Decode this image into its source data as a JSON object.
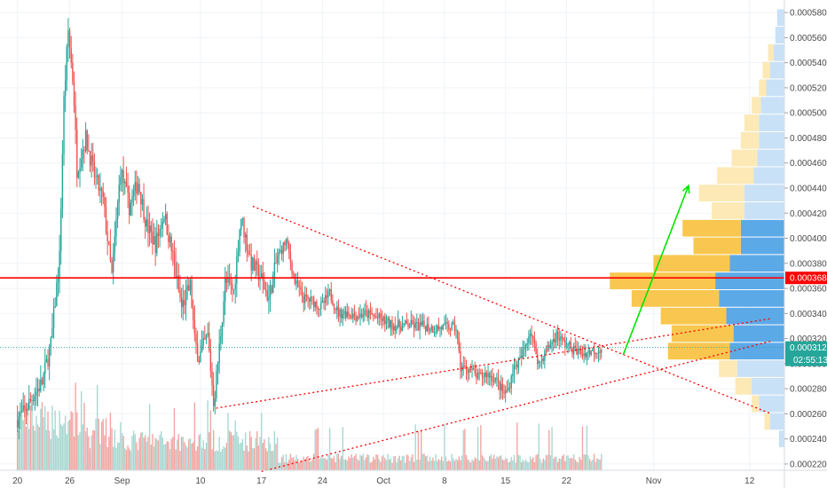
{
  "chart_data": {
    "type": "candlestick",
    "colors": {
      "up": "#26a69a",
      "down": "#ef5350",
      "volume_up": "#a8d8d2",
      "volume_down": "#f2a6a2",
      "resistance": "#ff0000",
      "trend": "#ff0000",
      "arrow": "#00e600",
      "vp_up": "#5ca9e8",
      "vp_down": "#f9c74f",
      "vp_up_light": "#c9e1f7",
      "vp_down_light": "#fde9b6",
      "last_price_tag": "#26a69a",
      "resistance_tag": "#ff0000",
      "grid": "#f0f3f7"
    },
    "y_axis": {
      "range": [
        0.000215,
        0.00059
      ],
      "ticks": [
        "0.0002200",
        "0.0002400",
        "0.0002600",
        "0.0002800",
        "0.0003000",
        "0.0003200",
        "0.0003400",
        "0.0003600",
        "0.0003800",
        "0.0004000",
        "0.0004200",
        "0.0004400",
        "0.0004600",
        "0.0004800",
        "0.0005000",
        "0.0005200",
        "0.0005400",
        "0.0005600",
        "0.0005800"
      ]
    },
    "x_axis": {
      "ticks": [
        {
          "label": "20",
          "day": 0
        },
        {
          "label": "26",
          "day": 6
        },
        {
          "label": "Sep",
          "day": 12
        },
        {
          "label": "10",
          "day": 21
        },
        {
          "label": "17",
          "day": 28
        },
        {
          "label": "24",
          "day": 35
        },
        {
          "label": "Oct",
          "day": 42
        },
        {
          "label": "8",
          "day": 49
        },
        {
          "label": "15",
          "day": 56
        },
        {
          "label": "22",
          "day": 63
        },
        {
          "label": "Nov",
          "day": 73
        },
        {
          "label": "12",
          "day": 84
        }
      ],
      "range_days": [
        -2,
        88
      ]
    },
    "price_path": [
      [
        0,
        0.000255
      ],
      [
        1,
        0.000262
      ],
      [
        2,
        0.000275
      ],
      [
        3,
        0.000285
      ],
      [
        4,
        0.000315
      ],
      [
        5,
        0.000385
      ],
      [
        5.5,
        0.00051
      ],
      [
        6,
        0.000565
      ],
      [
        6.6,
        0.00052
      ],
      [
        7,
        0.000455
      ],
      [
        8,
        0.00048
      ],
      [
        9,
        0.00045
      ],
      [
        10,
        0.00043
      ],
      [
        11,
        0.00037
      ],
      [
        12,
        0.000455
      ],
      [
        13,
        0.000425
      ],
      [
        14,
        0.000445
      ],
      [
        15,
        0.00041
      ],
      [
        16,
        0.000395
      ],
      [
        17,
        0.00042
      ],
      [
        18,
        0.000385
      ],
      [
        19,
        0.000345
      ],
      [
        20,
        0.000362
      ],
      [
        20.5,
        0.000318
      ],
      [
        21,
        0.000305
      ],
      [
        22,
        0.000322
      ],
      [
        22.7,
        0.000268
      ],
      [
        23.5,
        0.000325
      ],
      [
        24,
        0.000365
      ],
      [
        25,
        0.000358
      ],
      [
        25.8,
        0.000418
      ],
      [
        26.5,
        0.000395
      ],
      [
        27,
        0.00038
      ],
      [
        28,
        0.00037
      ],
      [
        29,
        0.000352
      ],
      [
        30,
        0.000385
      ],
      [
        31,
        0.000398
      ],
      [
        32,
        0.000365
      ],
      [
        33,
        0.000352
      ],
      [
        34,
        0.00035
      ],
      [
        35,
        0.000345
      ],
      [
        36,
        0.000356
      ],
      [
        37,
        0.00034
      ],
      [
        38,
        0.000341
      ],
      [
        39,
        0.000338
      ],
      [
        40,
        0.00034
      ],
      [
        41,
        0.000338
      ],
      [
        42,
        0.000335
      ],
      [
        43,
        0.000331
      ],
      [
        44,
        0.00033
      ],
      [
        45,
        0.000331
      ],
      [
        46,
        0.00033
      ],
      [
        47,
        0.00033
      ],
      [
        48,
        0.000328
      ],
      [
        49,
        0.000329
      ],
      [
        50,
        0.000329
      ],
      [
        50.5,
        0.000328
      ],
      [
        51,
        0.000297
      ],
      [
        52,
        0.000296
      ],
      [
        53,
        0.000289
      ],
      [
        54,
        0.000292
      ],
      [
        55,
        0.000288
      ],
      [
        56,
        0.000276
      ],
      [
        56.5,
        0.00028
      ],
      [
        57,
        0.000295
      ],
      [
        58,
        0.000305
      ],
      [
        59,
        0.000327
      ],
      [
        60,
        0.0003
      ],
      [
        61,
        0.000312
      ],
      [
        62,
        0.000323
      ],
      [
        63,
        0.000316
      ],
      [
        64,
        0.000311
      ],
      [
        65,
        0.000308
      ],
      [
        66,
        0.00031
      ],
      [
        67,
        0.000312
      ]
    ],
    "resistance_level": 0.0003684,
    "resistance_label": "0.0003684",
    "last_price": 0.0003129,
    "last_price_label": "0.0003129",
    "countdown_label": "02:55:13",
    "trendlines": [
      {
        "style": "dotted",
        "from": [
          27.0,
          0.0004255
        ],
        "to": [
          86.5,
          0.00026
        ]
      },
      {
        "style": "dotted",
        "from": [
          22.8,
          0.0002645
        ],
        "to": [
          86.5,
          0.000336
        ]
      },
      {
        "style": "dotted",
        "from": [
          28.0,
          0.000214
        ],
        "to": [
          86.5,
          0.000318
        ]
      }
    ],
    "arrow": {
      "from": [
        69.5,
        0.000307
      ],
      "to": [
        77.0,
        0.000442
      ]
    },
    "volume_profile": [
      {
        "price": 0.000576,
        "up": 4,
        "down": 0
      },
      {
        "price": 0.000562,
        "up": 5,
        "down": 0
      },
      {
        "price": 0.000548,
        "up": 6,
        "down": 3
      },
      {
        "price": 0.000534,
        "up": 8,
        "down": 4
      },
      {
        "price": 0.00052,
        "up": 10,
        "down": 4
      },
      {
        "price": 0.000506,
        "up": 13,
        "down": 5
      },
      {
        "price": 0.000492,
        "up": 14,
        "down": 8
      },
      {
        "price": 0.000478,
        "up": 14,
        "down": 10
      },
      {
        "price": 0.000464,
        "up": 15,
        "down": 14
      },
      {
        "price": 0.00045,
        "up": 17,
        "down": 20
      },
      {
        "price": 0.000436,
        "up": 22,
        "down": 25
      },
      {
        "price": 0.000422,
        "up": 22,
        "down": 18
      },
      {
        "price": 0.000408,
        "up": 24,
        "down": 32
      },
      {
        "price": 0.000394,
        "up": 24,
        "down": 26
      },
      {
        "price": 0.00038,
        "up": 30,
        "down": 42
      },
      {
        "price": 0.000366,
        "up": 38,
        "down": 58
      },
      {
        "price": 0.000352,
        "up": 36,
        "down": 48
      },
      {
        "price": 0.000338,
        "up": 32,
        "down": 36
      },
      {
        "price": 0.000324,
        "up": 28,
        "down": 34
      },
      {
        "price": 0.00031,
        "up": 30,
        "down": 34
      },
      {
        "price": 0.000296,
        "up": 26,
        "down": 10
      },
      {
        "price": 0.000282,
        "up": 18,
        "down": 9
      },
      {
        "price": 0.000268,
        "up": 14,
        "down": 4
      },
      {
        "price": 0.000254,
        "up": 8,
        "down": 3
      },
      {
        "price": 0.00024,
        "up": 3,
        "down": 0
      }
    ]
  }
}
